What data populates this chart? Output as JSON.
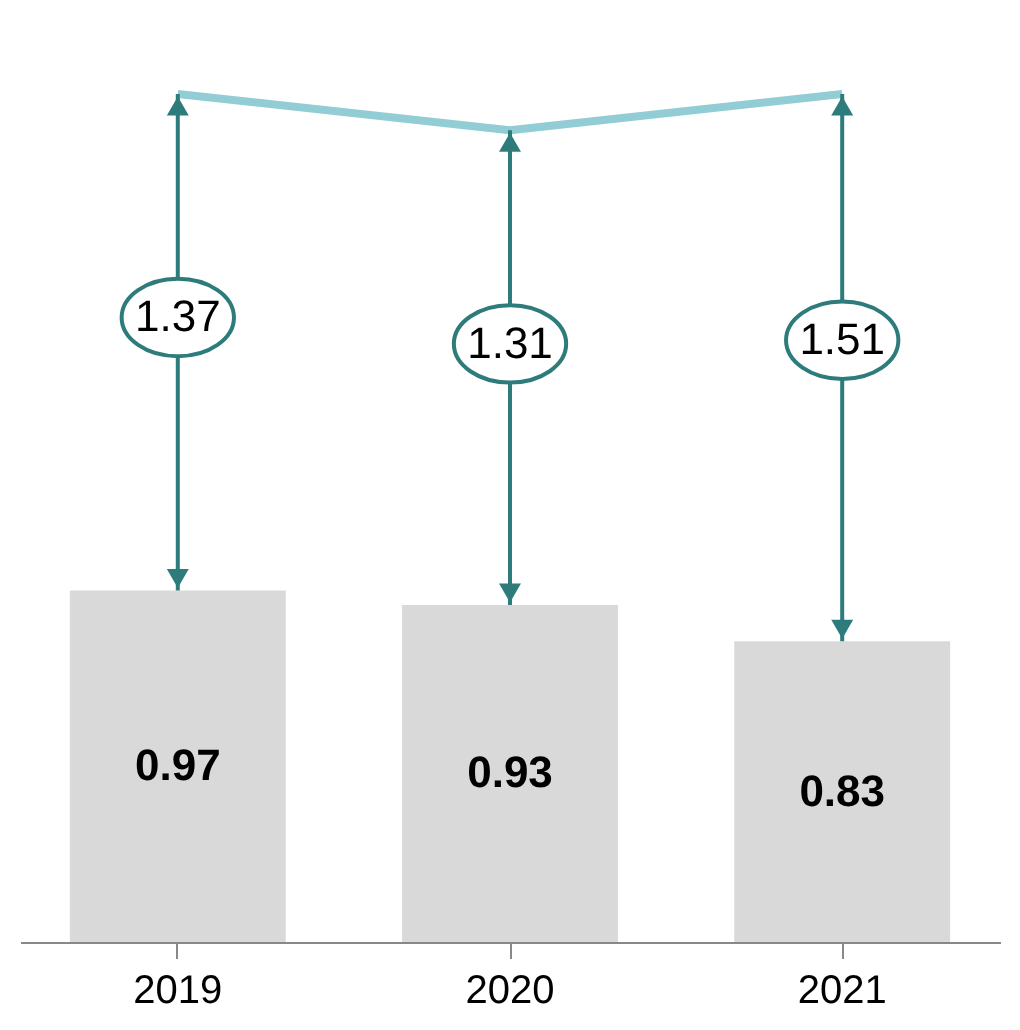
{
  "chart_data": {
    "type": "bar",
    "categories": [
      "2019",
      "2020",
      "2021"
    ],
    "series": [
      {
        "color": "#d9d9d9",
        "values": [
          0.97,
          0.93,
          0.83
        ],
        "data_labels": true
      },
      {
        "type": "line",
        "color": "#92cdd6",
        "values": [
          2.34,
          2.24,
          2.34
        ],
        "marker": "none"
      }
    ],
    "tick_labels": "x",
    "grid": false,
    "annotations": [
      "1.37",
      "1.31",
      "1.51"
    ]
  }
}
